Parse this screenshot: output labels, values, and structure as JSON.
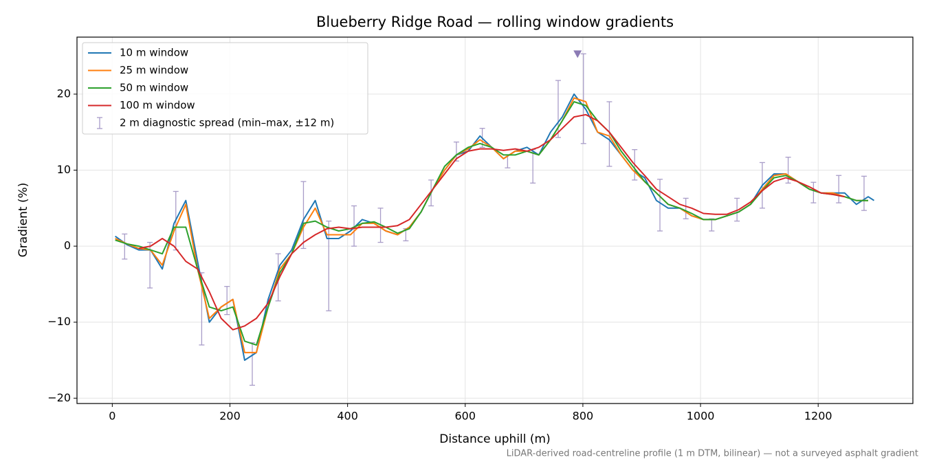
{
  "chart_data": {
    "type": "line",
    "title": "Blueberry Ridge Road — rolling window gradients",
    "x_label": "Distance uphill (m)",
    "y_label": "Gradient (%)",
    "footnote": "LiDAR-derived road-centreline profile (1 m DTM, bilinear) — not a surveyed asphalt gradient",
    "xlim": [
      -60,
      1361
    ],
    "ylim": [
      -20.7,
      27.5
    ],
    "xticks": [
      0,
      200,
      400,
      600,
      800,
      1000,
      1200
    ],
    "yticks": [
      {
        "value": -20,
        "label": "−20"
      },
      {
        "value": -10,
        "label": "−10"
      },
      0,
      10,
      20
    ],
    "grid": true,
    "legend": "upper left",
    "x": [
      5,
      25,
      45,
      65,
      85,
      105,
      125,
      145,
      165,
      185,
      205,
      225,
      245,
      265,
      285,
      305,
      325,
      345,
      365,
      385,
      405,
      425,
      445,
      465,
      485,
      505,
      525,
      545,
      565,
      585,
      605,
      625,
      645,
      665,
      685,
      705,
      725,
      745,
      765,
      785,
      805,
      825,
      845,
      865,
      885,
      905,
      925,
      945,
      965,
      985,
      1005,
      1025,
      1045,
      1065,
      1085,
      1105,
      1125,
      1145,
      1165,
      1185,
      1205,
      1225,
      1245,
      1265,
      1285,
      1295
    ],
    "series": [
      {
        "name": "10 m window",
        "color": "#1f77b4",
        "values": [
          1.3,
          0.2,
          -0.5,
          -0.5,
          -3,
          3,
          6,
          -2,
          -10,
          -8,
          -7,
          -15,
          -14,
          -7,
          -2.5,
          -0.5,
          3.5,
          6,
          1,
          1,
          2,
          3.5,
          3,
          2,
          1.5,
          2.5,
          4.5,
          7.5,
          10,
          12,
          12.5,
          14.5,
          13,
          11.5,
          12.5,
          13,
          12,
          15,
          17,
          20,
          18,
          15,
          14,
          12,
          10,
          9,
          6,
          5,
          5,
          4,
          3.5,
          3.5,
          4,
          4.5,
          5.5,
          8,
          9.5,
          9.5,
          8.5,
          7.5,
          7,
          7,
          7,
          5.5,
          6.5,
          6
        ]
      },
      {
        "name": "25 m window",
        "color": "#ff7f0e",
        "values": [
          1,
          0.3,
          -0.3,
          -0.5,
          -2.5,
          2,
          5.5,
          -3,
          -9.5,
          -8,
          -7,
          -14,
          -14,
          -8,
          -3,
          -1,
          2.5,
          5,
          1.5,
          1.5,
          1.5,
          3,
          3,
          2,
          1.5,
          2.5,
          4.5,
          7.5,
          10,
          12,
          12.8,
          14,
          13,
          11.5,
          12.5,
          12.5,
          12,
          14,
          16.5,
          19.5,
          19,
          15,
          14.5,
          12,
          10,
          8.5,
          7,
          5.5,
          5,
          4,
          3.5,
          3.5,
          4,
          4.5,
          5.5,
          7.5,
          9.3,
          9.5,
          8.5,
          7.5,
          7,
          7,
          6.5,
          6,
          6,
          null
        ]
      },
      {
        "name": "50 m window",
        "color": "#2ca02c",
        "values": [
          0.8,
          0.3,
          0,
          -0.5,
          -1,
          2.5,
          2.5,
          -3,
          -8,
          -8.5,
          -8,
          -12.5,
          -13,
          -8,
          -3.5,
          -1,
          3,
          3.3,
          2.5,
          2,
          2.3,
          3,
          3.2,
          2.5,
          1.7,
          2.3,
          4.5,
          7.5,
          10.5,
          12,
          13,
          13.5,
          13,
          12,
          12,
          12.5,
          12,
          14,
          16.5,
          19,
          18.5,
          16.5,
          15,
          12.5,
          10.5,
          8.5,
          7,
          5.5,
          5,
          4.3,
          3.5,
          3.5,
          4,
          4.5,
          5.5,
          7.3,
          9,
          9.3,
          8.5,
          7.5,
          7,
          6.8,
          6.5,
          6,
          6,
          null
        ]
      },
      {
        "name": "100 m window",
        "color": "#d62728",
        "values": [
          null,
          null,
          -0.3,
          0,
          1,
          0,
          -2,
          -3,
          -6,
          -9.5,
          -11,
          -10.5,
          -9.5,
          -7.5,
          -4,
          -1,
          0.5,
          1.5,
          2.3,
          2.5,
          2.3,
          2.5,
          2.5,
          2.5,
          2.7,
          3.5,
          5.5,
          7.5,
          9.5,
          11.5,
          12.5,
          12.8,
          12.8,
          12.6,
          12.8,
          12.5,
          13,
          14,
          15.5,
          17,
          17.3,
          16.5,
          15,
          13,
          11,
          9.3,
          7.5,
          6.5,
          5.5,
          5,
          4.3,
          4.2,
          4.2,
          4.8,
          5.8,
          7.3,
          8.5,
          9,
          8.5,
          7.8,
          7,
          6.8,
          6.5,
          null,
          null,
          null
        ]
      }
    ],
    "errorbars": {
      "name": "2 m diagnostic spread (min–max, ±12 m)",
      "color": "#a89cc8",
      "x": [
        21,
        64,
        108,
        152,
        195,
        238,
        282,
        325,
        368,
        411,
        456,
        499,
        542,
        585,
        629,
        672,
        715,
        758,
        801,
        845,
        888,
        931,
        975,
        1019,
        1062,
        1105,
        1149,
        1192,
        1235,
        1278
      ],
      "low": [
        -1.7,
        -5.5,
        -0.5,
        -13,
        -9,
        -18.3,
        -7.2,
        -0.3,
        -8.5,
        0,
        0.5,
        0.7,
        5.3,
        11.2,
        13,
        10.3,
        8.3,
        14.3,
        13.5,
        10.5,
        8.7,
        2,
        3.6,
        2,
        3.3,
        5,
        8.3,
        5.7,
        5.7,
        4.7
      ],
      "high": [
        1.6,
        0.5,
        7.2,
        -3.5,
        -5.3,
        -12.7,
        -1,
        8.5,
        3.3,
        5.3,
        5,
        2.3,
        8.7,
        13.7,
        15.5,
        12,
        12.7,
        21.8,
        25.3,
        19,
        12.7,
        8.8,
        6.3,
        3.6,
        6.3,
        11,
        11.7,
        8.4,
        9.3,
        9.2
      ]
    },
    "peak_marker": {
      "x": 791,
      "y": 25.3,
      "color": "#8c7bb5"
    }
  }
}
